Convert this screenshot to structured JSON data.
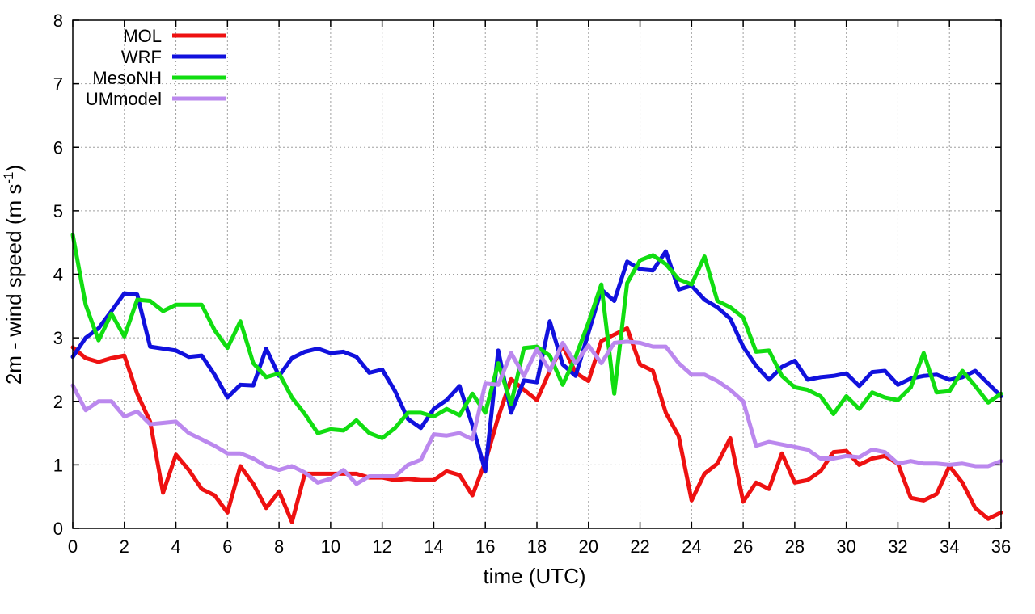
{
  "chart_data": {
    "type": "line",
    "xlabel": "time (UTC)",
    "ylabel": {
      "base": "2m - wind speed  (m s",
      "sup": "-1",
      "close": ")"
    },
    "xlim": [
      0,
      36
    ],
    "ylim": [
      0,
      8
    ],
    "xticks": [
      0,
      2,
      4,
      6,
      8,
      10,
      12,
      14,
      16,
      18,
      20,
      22,
      24,
      26,
      28,
      30,
      32,
      34,
      36
    ],
    "yticks": [
      0,
      1,
      2,
      3,
      4,
      5,
      6,
      7,
      8
    ],
    "grid": true,
    "legend_position": "top-left",
    "x": [
      0,
      0.5,
      1,
      1.5,
      2,
      2.5,
      3,
      3.5,
      4,
      4.5,
      5,
      5.5,
      6,
      6.5,
      7,
      7.5,
      8,
      8.5,
      9,
      9.5,
      10,
      10.5,
      11,
      11.5,
      12,
      12.5,
      13,
      13.5,
      14,
      14.5,
      15,
      15.5,
      16,
      16.5,
      17,
      17.5,
      18,
      18.5,
      19,
      19.5,
      20,
      20.5,
      21,
      21.5,
      22,
      22.5,
      23,
      23.5,
      24,
      24.5,
      25,
      25.5,
      26,
      26.5,
      27,
      27.5,
      28,
      28.5,
      29,
      29.5,
      30,
      30.5,
      31,
      31.5,
      32,
      32.5,
      33,
      33.5,
      34,
      34.5,
      35,
      35.5,
      36
    ],
    "series": [
      {
        "name": "MOL",
        "color": "#ee1111",
        "values": [
          2.85,
          2.68,
          2.62,
          2.68,
          2.72,
          2.12,
          1.68,
          0.56,
          1.16,
          0.92,
          0.62,
          0.52,
          0.25,
          0.98,
          0.7,
          0.32,
          0.58,
          0.1,
          0.86,
          0.86,
          0.86,
          0.86,
          0.86,
          0.8,
          0.8,
          0.76,
          0.78,
          0.76,
          0.76,
          0.9,
          0.84,
          0.52,
          1.05,
          1.75,
          2.35,
          2.18,
          2.02,
          2.48,
          2.88,
          2.45,
          2.32,
          2.95,
          3.05,
          3.15,
          2.58,
          2.48,
          1.82,
          1.45,
          0.44,
          0.86,
          1.02,
          1.42,
          0.42,
          0.72,
          0.62,
          1.18,
          0.72,
          0.76,
          0.9,
          1.2,
          1.22,
          1.0,
          1.1,
          1.14,
          1.02,
          0.48,
          0.44,
          0.54,
          0.98,
          0.72,
          0.32,
          0.15,
          0.25
        ]
      },
      {
        "name": "WRF",
        "color": "#1111dd",
        "values": [
          2.7,
          3.0,
          3.15,
          3.42,
          3.7,
          3.68,
          2.86,
          2.83,
          2.8,
          2.7,
          2.72,
          2.42,
          2.06,
          2.26,
          2.25,
          2.83,
          2.4,
          2.68,
          2.78,
          2.83,
          2.76,
          2.78,
          2.7,
          2.45,
          2.5,
          2.16,
          1.72,
          1.58,
          1.88,
          2.02,
          2.24,
          1.62,
          0.9,
          2.8,
          1.82,
          2.33,
          2.3,
          3.26,
          2.58,
          2.4,
          3.08,
          3.76,
          3.58,
          4.2,
          4.08,
          4.06,
          4.36,
          3.76,
          3.82,
          3.6,
          3.48,
          3.3,
          2.86,
          2.56,
          2.34,
          2.54,
          2.64,
          2.34,
          2.38,
          2.4,
          2.44,
          2.24,
          2.46,
          2.48,
          2.26,
          2.36,
          2.4,
          2.42,
          2.34,
          2.38,
          2.48,
          2.28,
          2.08
        ]
      },
      {
        "name": "MesoNH",
        "color": "#11dd11",
        "values": [
          4.62,
          3.52,
          2.96,
          3.38,
          3.02,
          3.6,
          3.58,
          3.42,
          3.52,
          3.52,
          3.52,
          3.12,
          2.84,
          3.26,
          2.6,
          2.38,
          2.44,
          2.06,
          1.8,
          1.5,
          1.56,
          1.54,
          1.7,
          1.5,
          1.42,
          1.58,
          1.82,
          1.82,
          1.76,
          1.88,
          1.78,
          2.12,
          1.82,
          2.6,
          1.96,
          2.84,
          2.86,
          2.72,
          2.26,
          2.7,
          3.24,
          3.84,
          2.12,
          3.86,
          4.22,
          4.3,
          4.16,
          3.92,
          3.84,
          4.28,
          3.58,
          3.48,
          3.32,
          2.78,
          2.8,
          2.4,
          2.22,
          2.18,
          2.08,
          1.8,
          2.08,
          1.88,
          2.14,
          2.06,
          2.02,
          2.22,
          2.76,
          2.14,
          2.16,
          2.48,
          2.24,
          1.98,
          2.12
        ]
      },
      {
        "name": "UMmodel",
        "color": "#bb88ee",
        "values": [
          2.25,
          1.86,
          2.0,
          2.0,
          1.76,
          1.84,
          1.64,
          1.66,
          1.68,
          1.5,
          1.4,
          1.3,
          1.18,
          1.18,
          1.1,
          0.98,
          0.92,
          0.98,
          0.88,
          0.72,
          0.78,
          0.92,
          0.7,
          0.82,
          0.82,
          0.82,
          1.0,
          1.08,
          1.48,
          1.46,
          1.5,
          1.4,
          2.28,
          2.26,
          2.76,
          2.4,
          2.82,
          2.48,
          2.92,
          2.6,
          2.88,
          2.6,
          2.92,
          2.94,
          2.92,
          2.86,
          2.86,
          2.6,
          2.42,
          2.42,
          2.32,
          2.18,
          2.0,
          1.3,
          1.36,
          1.32,
          1.28,
          1.24,
          1.1,
          1.1,
          1.14,
          1.12,
          1.24,
          1.2,
          1.02,
          1.06,
          1.02,
          1.02,
          1.0,
          1.02,
          0.98,
          0.98,
          1.06
        ]
      }
    ]
  }
}
